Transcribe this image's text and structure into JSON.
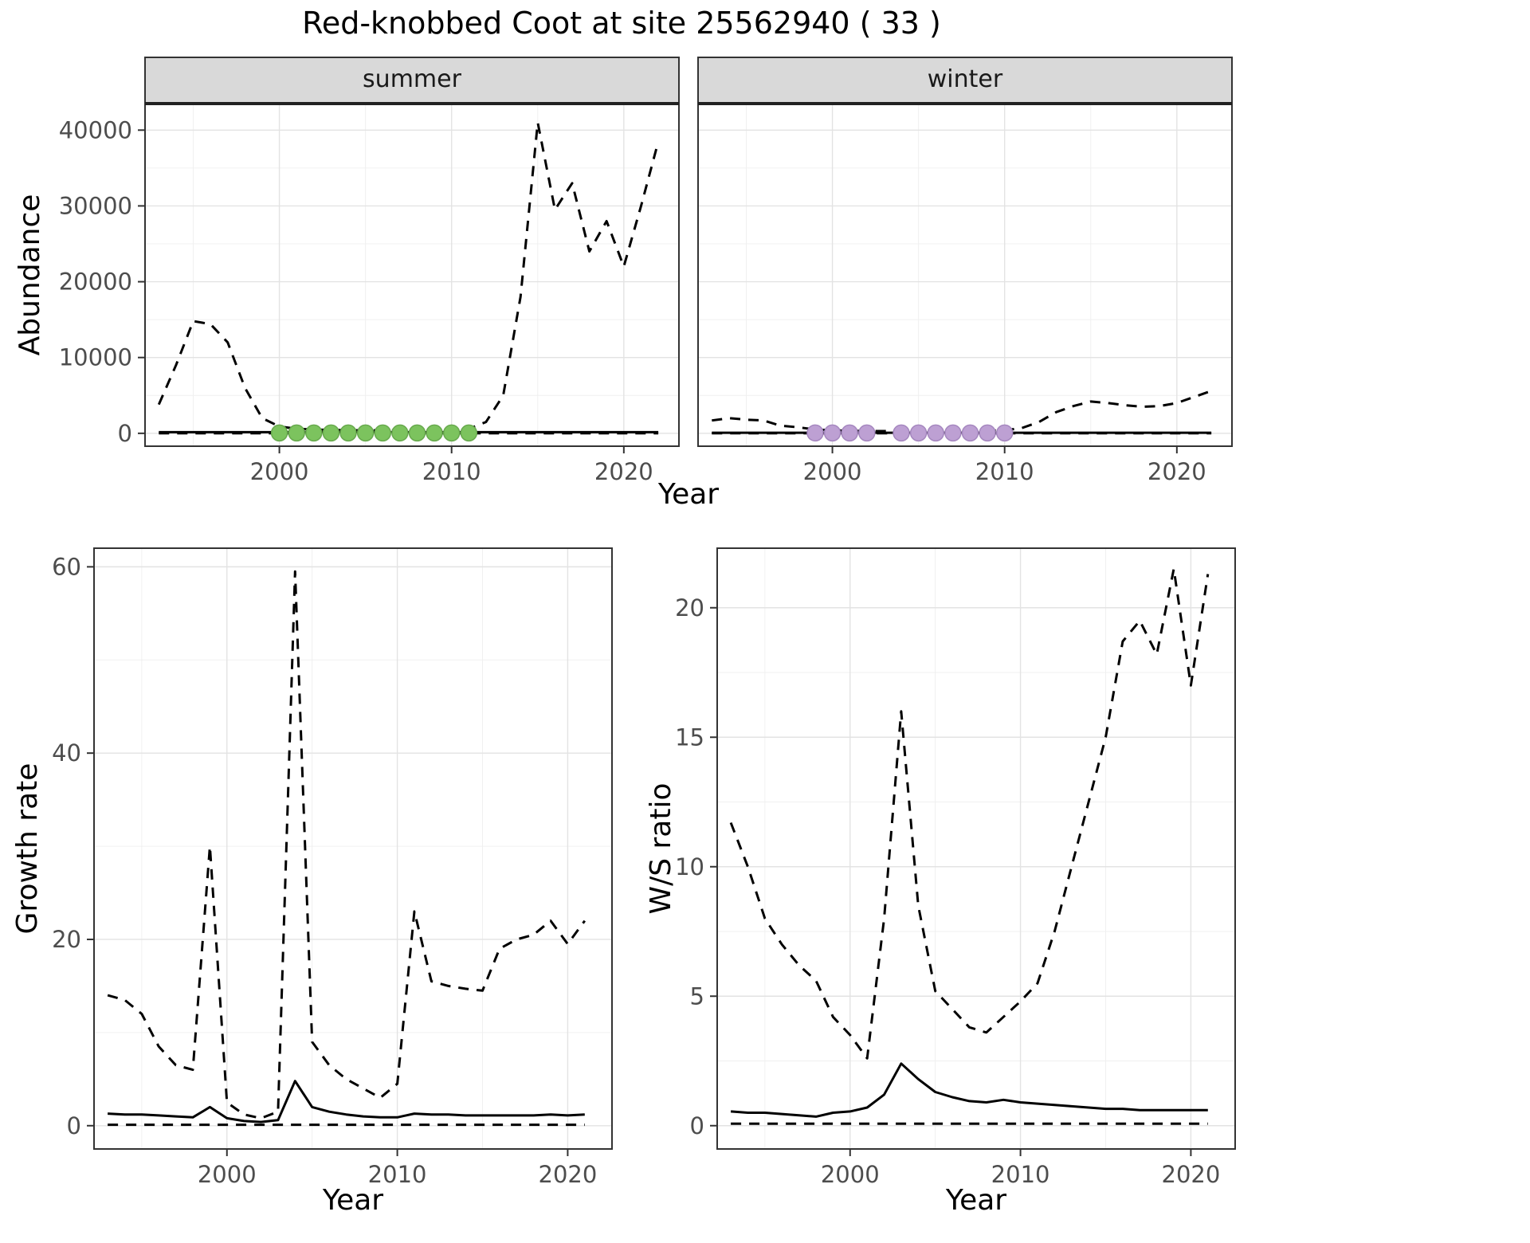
{
  "title": "Red-knobbed Coot at site 25562940 ( 33 )",
  "colors": {
    "line": "#000000",
    "strip_bg": "#d9d9d9",
    "strip_border": "#333333",
    "panel_border": "#333333",
    "grid_major": "#e3e3e3",
    "grid_minor": "#f0f0f0",
    "tick_label": "#4d4d4d",
    "summer_point_fill": "#7cc35e",
    "summer_point_stroke": "#67a94d",
    "winter_point_fill": "#bda0d3",
    "winter_point_stroke": "#a587bf"
  },
  "chart_data": [
    {
      "id": "abundance-summer",
      "type": "line",
      "facet": "summer",
      "xlabel": "Year",
      "ylabel": "Abundance",
      "xlim": [
        1992.2,
        2023.2
      ],
      "ylim": [
        -1700,
        43500
      ],
      "xticks": [
        2000,
        2010,
        2020
      ],
      "yticks": [
        0,
        10000,
        20000,
        30000,
        40000
      ],
      "x": [
        1993,
        1994,
        1995,
        1996,
        1997,
        1998,
        1999,
        2000,
        2001,
        2002,
        2003,
        2004,
        2005,
        2006,
        2007,
        2008,
        2009,
        2010,
        2011,
        2012,
        2013,
        2014,
        2015,
        2016,
        2017,
        2018,
        2019,
        2020,
        2021,
        2022
      ],
      "series": [
        {
          "name": "upper-ci",
          "style": "dashed",
          "values": [
            3800,
            9000,
            14800,
            14400,
            12000,
            6000,
            2000,
            900,
            600,
            500,
            450,
            400,
            400,
            400,
            400,
            400,
            450,
            500,
            600,
            1500,
            5000,
            18000,
            41000,
            29500,
            33000,
            24000,
            28000,
            22000,
            30000,
            38500
          ]
        },
        {
          "name": "estimate",
          "style": "solid",
          "values": [
            150,
            150,
            150,
            150,
            150,
            150,
            150,
            150,
            150,
            150,
            150,
            150,
            150,
            150,
            150,
            150,
            150,
            150,
            150,
            150,
            150,
            150,
            150,
            150,
            150,
            150,
            150,
            150,
            150,
            150
          ]
        },
        {
          "name": "lower-ci",
          "style": "dashed",
          "values": [
            10,
            10,
            10,
            10,
            10,
            10,
            10,
            10,
            10,
            10,
            10,
            10,
            10,
            10,
            10,
            10,
            10,
            10,
            10,
            10,
            10,
            10,
            10,
            10,
            10,
            10,
            10,
            10,
            10,
            10
          ]
        }
      ],
      "points": {
        "name": "summer-observed",
        "color_key": "summer_point",
        "x": [
          2000,
          2001,
          2002,
          2003,
          2004,
          2005,
          2006,
          2007,
          2008,
          2009,
          2010,
          2011
        ],
        "values": [
          50,
          50,
          50,
          50,
          50,
          50,
          50,
          50,
          50,
          50,
          50,
          50
        ]
      }
    },
    {
      "id": "abundance-winter",
      "type": "line",
      "facet": "winter",
      "xlabel": "Year",
      "ylabel": "Abundance",
      "xlim": [
        1992.2,
        2023.2
      ],
      "ylim": [
        -1700,
        43500
      ],
      "xticks": [
        2000,
        2010,
        2020
      ],
      "yticks": [
        0,
        10000,
        20000,
        30000,
        40000
      ],
      "x": [
        1993,
        1994,
        1995,
        1996,
        1997,
        1998,
        1999,
        2000,
        2001,
        2002,
        2003,
        2004,
        2005,
        2006,
        2007,
        2008,
        2009,
        2010,
        2011,
        2012,
        2013,
        2014,
        2015,
        2016,
        2017,
        2018,
        2019,
        2020,
        2021,
        2022
      ],
      "series": [
        {
          "name": "upper-ci",
          "style": "dashed",
          "values": [
            1700,
            2000,
            1800,
            1700,
            1000,
            800,
            500,
            400,
            350,
            300,
            300,
            300,
            300,
            300,
            300,
            300,
            350,
            400,
            700,
            1500,
            2800,
            3600,
            4200,
            4000,
            3700,
            3500,
            3600,
            4000,
            4800,
            5600
          ]
        },
        {
          "name": "estimate",
          "style": "solid",
          "values": [
            80,
            80,
            80,
            80,
            80,
            80,
            80,
            80,
            80,
            80,
            80,
            80,
            80,
            80,
            80,
            80,
            80,
            80,
            80,
            80,
            80,
            80,
            80,
            80,
            80,
            80,
            80,
            80,
            80,
            80
          ]
        },
        {
          "name": "lower-ci",
          "style": "dashed",
          "values": [
            10,
            10,
            10,
            10,
            10,
            10,
            10,
            10,
            10,
            10,
            10,
            10,
            10,
            10,
            10,
            10,
            10,
            10,
            10,
            10,
            10,
            10,
            10,
            10,
            10,
            10,
            10,
            10,
            10,
            10
          ]
        }
      ],
      "points": {
        "name": "winter-observed",
        "color_key": "winter_point",
        "x": [
          1999,
          2000,
          2001,
          2002,
          2004,
          2005,
          2006,
          2007,
          2008,
          2009,
          2010
        ],
        "values": [
          50,
          50,
          50,
          50,
          50,
          50,
          50,
          50,
          50,
          50,
          50
        ]
      }
    },
    {
      "id": "growth-rate",
      "type": "line",
      "xlabel": "Year",
      "ylabel": "Growth rate",
      "xlim": [
        1992.2,
        2022.6
      ],
      "ylim": [
        -2.5,
        62
      ],
      "xticks": [
        2000,
        2010,
        2020
      ],
      "yticks": [
        0,
        20,
        40,
        60
      ],
      "x": [
        1993,
        1994,
        1995,
        1996,
        1997,
        1998,
        1999,
        2000,
        2001,
        2002,
        2003,
        2004,
        2005,
        2006,
        2007,
        2008,
        2009,
        2010,
        2011,
        2012,
        2013,
        2014,
        2015,
        2016,
        2017,
        2018,
        2019,
        2020,
        2021
      ],
      "series": [
        {
          "name": "upper-ci",
          "style": "dashed",
          "values": [
            14,
            13.5,
            12,
            8.5,
            6.5,
            6,
            30,
            2.5,
            1.2,
            0.8,
            1.5,
            59.5,
            9,
            6.5,
            5,
            4,
            3,
            4.5,
            23,
            15.5,
            15,
            14.7,
            14.5,
            19,
            20,
            20.5,
            22,
            19.5,
            22
          ]
        },
        {
          "name": "estimate",
          "style": "solid",
          "values": [
            1.3,
            1.2,
            1.2,
            1.1,
            1,
            0.9,
            2,
            0.8,
            0.5,
            0.4,
            0.6,
            4.8,
            2,
            1.5,
            1.2,
            1,
            0.9,
            0.9,
            1.3,
            1.2,
            1.2,
            1.1,
            1.1,
            1.1,
            1.1,
            1.1,
            1.2,
            1.1,
            1.2
          ]
        },
        {
          "name": "lower-ci",
          "style": "dashed",
          "values": [
            0.1,
            0.1,
            0.1,
            0.1,
            0.1,
            0.1,
            0.1,
            0.1,
            0.1,
            0.1,
            0.1,
            0.1,
            0.1,
            0.1,
            0.1,
            0.1,
            0.1,
            0.1,
            0.1,
            0.1,
            0.1,
            0.1,
            0.1,
            0.1,
            0.1,
            0.1,
            0.1,
            0.1,
            0.1
          ]
        }
      ]
    },
    {
      "id": "ws-ratio",
      "type": "line",
      "xlabel": "Year",
      "ylabel": "W/S ratio",
      "xlim": [
        1992.2,
        2022.6
      ],
      "ylim": [
        -0.9,
        22.3
      ],
      "xticks": [
        2000,
        2010,
        2020
      ],
      "yticks": [
        0,
        5,
        10,
        15,
        20
      ],
      "x": [
        1993,
        1994,
        1995,
        1996,
        1997,
        1998,
        1999,
        2000,
        2001,
        2002,
        2003,
        2004,
        2005,
        2006,
        2007,
        2008,
        2009,
        2010,
        2011,
        2012,
        2013,
        2014,
        2015,
        2016,
        2017,
        2018,
        2019,
        2020,
        2021
      ],
      "series": [
        {
          "name": "upper-ci",
          "style": "dashed",
          "values": [
            11.7,
            10,
            8,
            7,
            6.2,
            5.6,
            4.2,
            3.5,
            2.6,
            8,
            16,
            8.5,
            5.2,
            4.5,
            3.8,
            3.6,
            4.2,
            4.8,
            5.5,
            7.5,
            10,
            12.5,
            15,
            18.7,
            19.5,
            18.2,
            21.5,
            17,
            21.3
          ]
        },
        {
          "name": "estimate",
          "style": "solid",
          "values": [
            0.55,
            0.5,
            0.5,
            0.45,
            0.4,
            0.35,
            0.5,
            0.55,
            0.7,
            1.2,
            2.4,
            1.8,
            1.3,
            1.1,
            0.95,
            0.9,
            1,
            0.9,
            0.85,
            0.8,
            0.75,
            0.7,
            0.65,
            0.65,
            0.6,
            0.6,
            0.6,
            0.6,
            0.6
          ]
        },
        {
          "name": "lower-ci",
          "style": "dashed",
          "values": [
            0.08,
            0.08,
            0.08,
            0.08,
            0.08,
            0.08,
            0.08,
            0.08,
            0.08,
            0.08,
            0.08,
            0.08,
            0.08,
            0.08,
            0.08,
            0.08,
            0.08,
            0.08,
            0.08,
            0.08,
            0.08,
            0.08,
            0.08,
            0.08,
            0.08,
            0.08,
            0.08,
            0.08,
            0.08
          ]
        }
      ]
    }
  ]
}
